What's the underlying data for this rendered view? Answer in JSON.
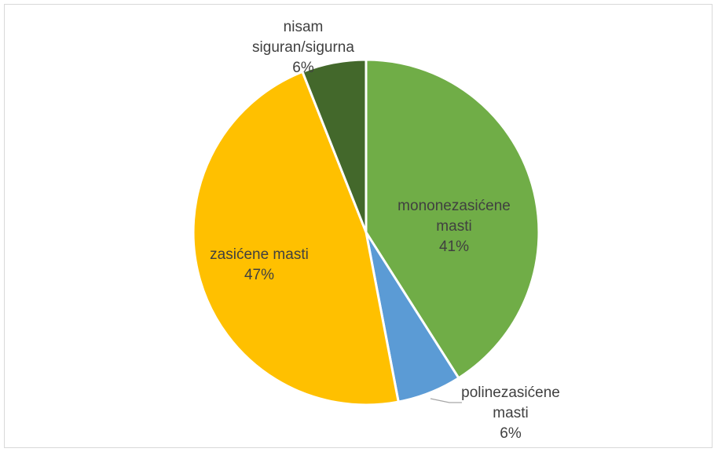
{
  "chart_data": {
    "type": "pie",
    "title": "",
    "slices": [
      {
        "label_lines": [
          "mononezasićene",
          "masti"
        ],
        "percent_label": "41%",
        "value": 41,
        "color": "#70ad47"
      },
      {
        "label_lines": [
          "polinezasićene",
          "masti"
        ],
        "percent_label": "6%",
        "value": 6,
        "color": "#5b9bd5"
      },
      {
        "label_lines": [
          "zasićene masti"
        ],
        "percent_label": "47%",
        "value": 47,
        "color": "#ffc000"
      },
      {
        "label_lines": [
          "nisam",
          "siguran/sigurna"
        ],
        "percent_label": "6%",
        "value": 6,
        "color": "#43682b"
      }
    ],
    "start_angle_deg": 0,
    "direction": "clockwise",
    "legend": "none",
    "data_labels": "category name and percentage"
  }
}
